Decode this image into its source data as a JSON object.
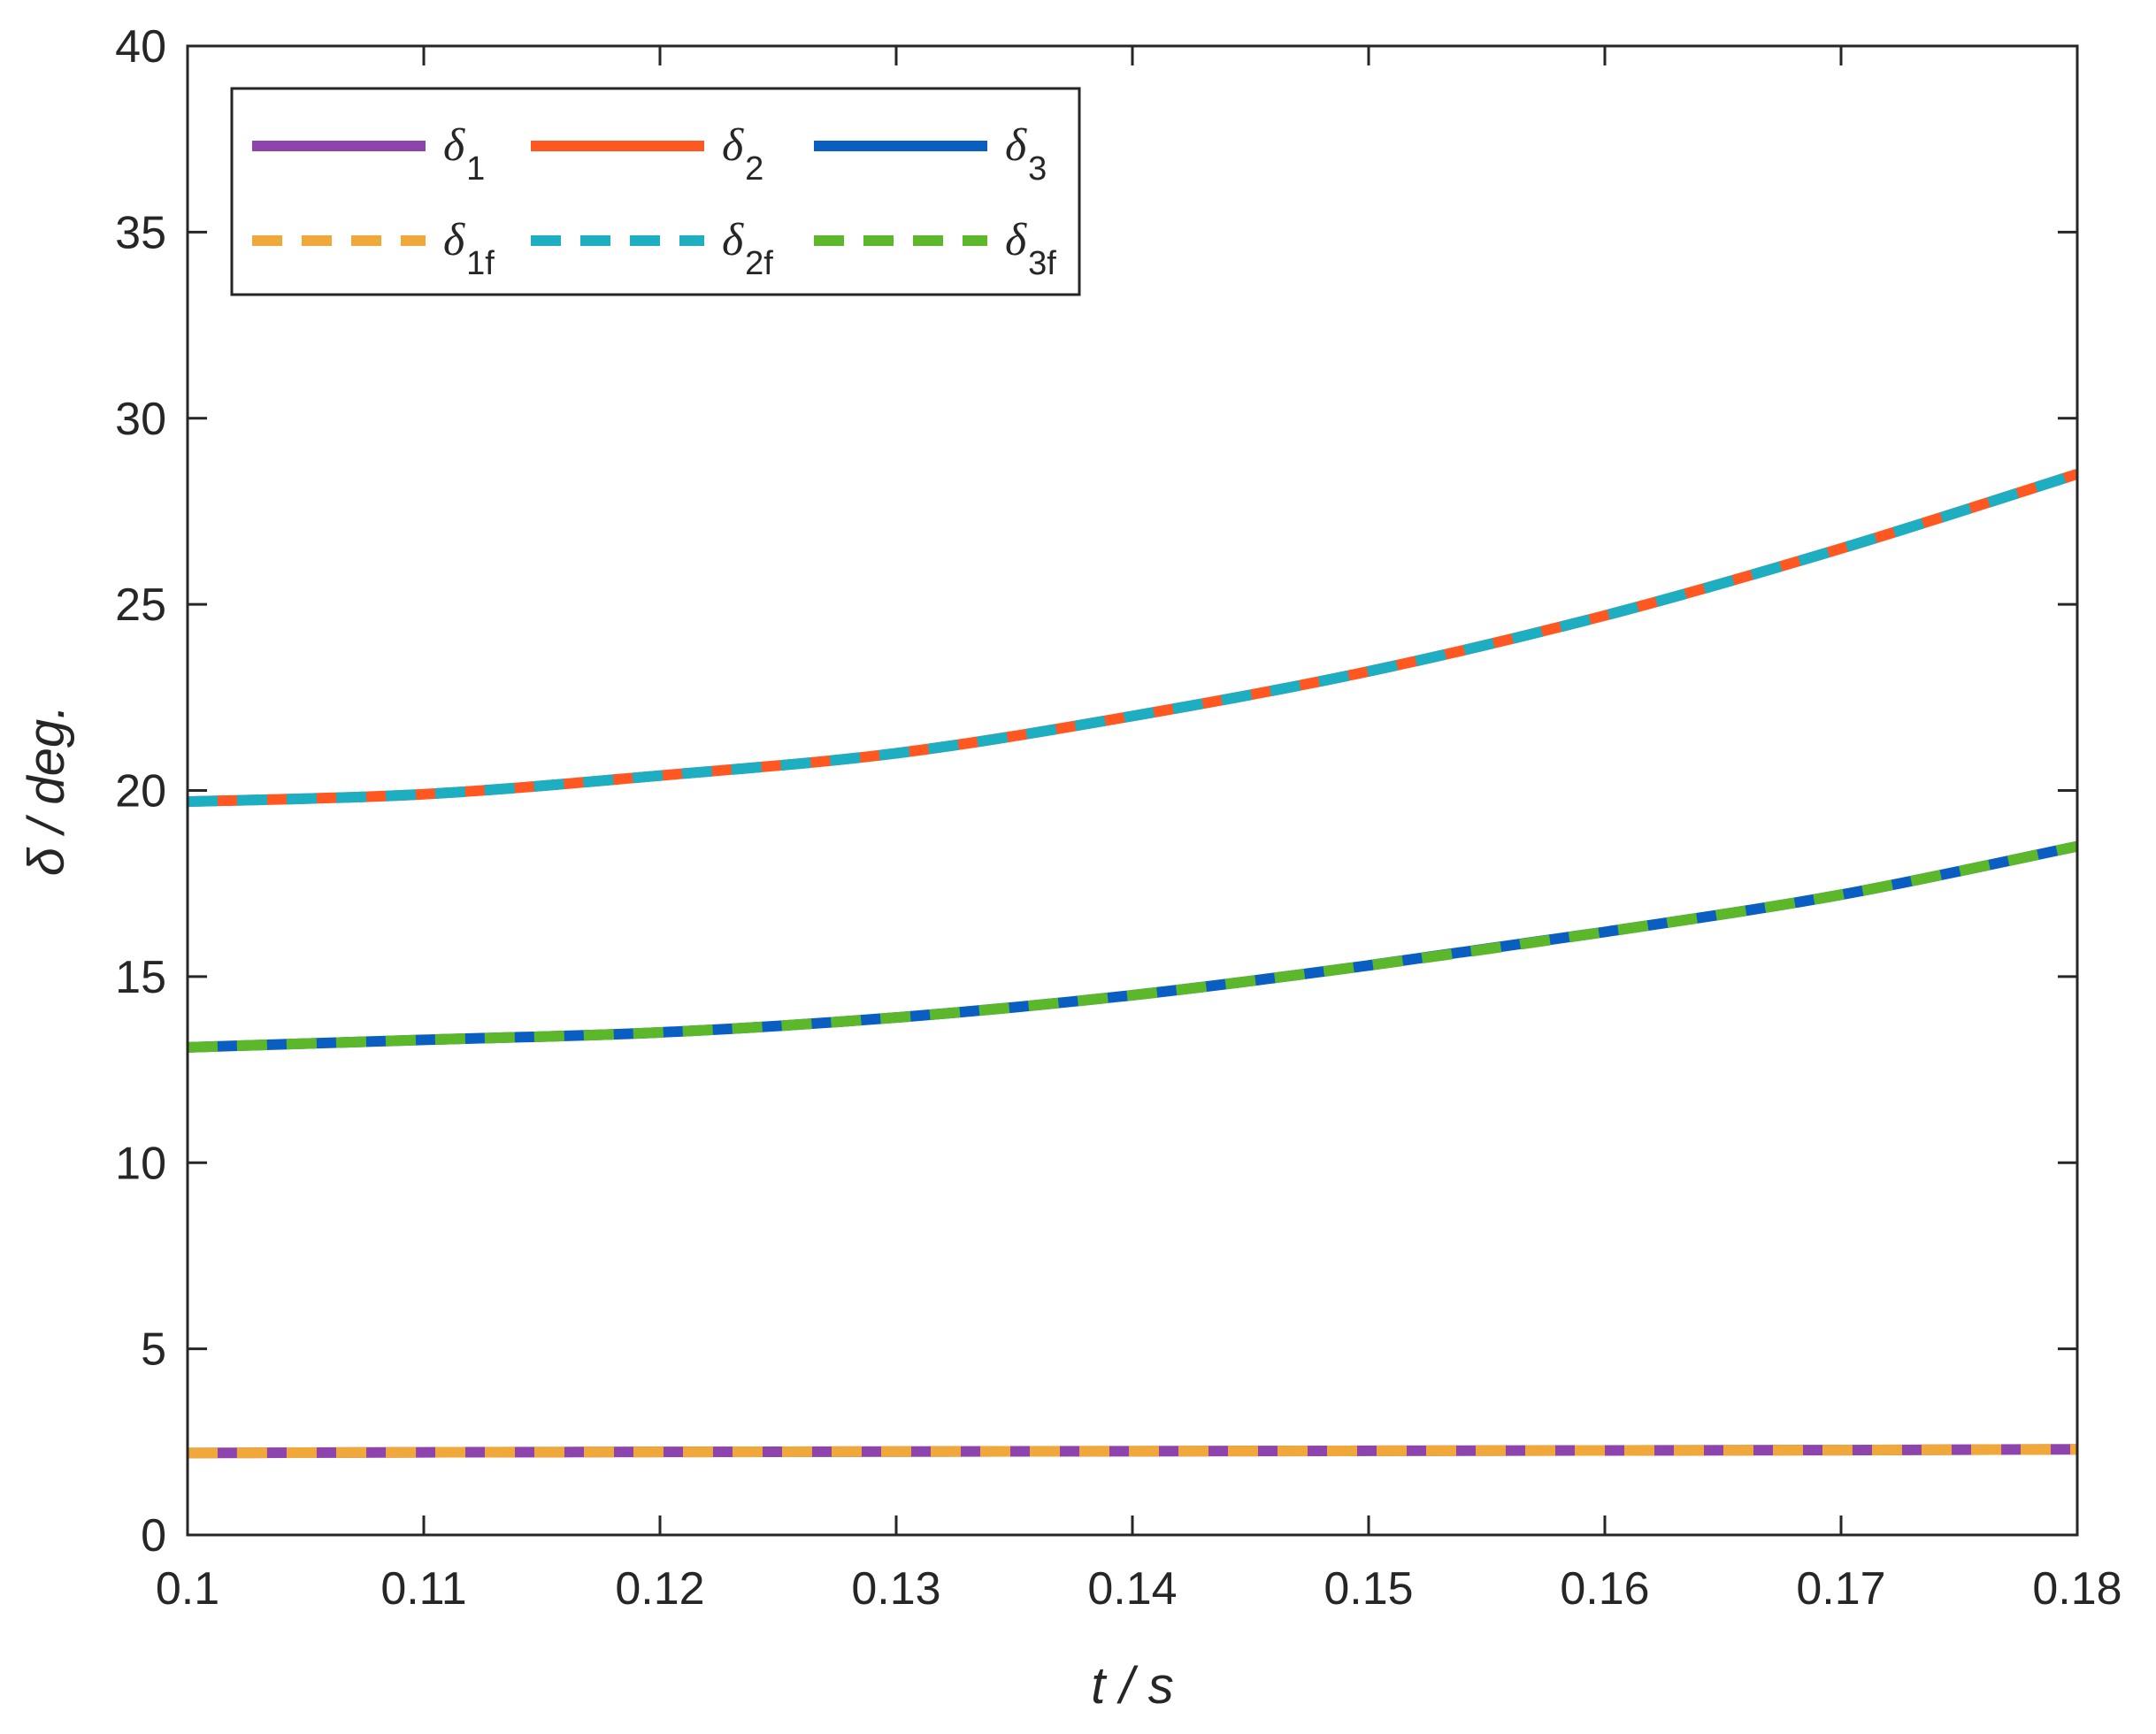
{
  "chart_data": {
    "type": "line",
    "title": "",
    "xlabel": "t / s",
    "ylabel": "δ / deg.",
    "xlim": [
      0.1,
      0.18
    ],
    "ylim": [
      0,
      40
    ],
    "x_ticks": [
      0.1,
      0.11,
      0.12,
      0.13,
      0.14,
      0.15,
      0.16,
      0.17,
      0.18
    ],
    "x_tick_labels": [
      "0.1",
      "0.11",
      "0.12",
      "0.13",
      "0.14",
      "0.15",
      "0.16",
      "0.17",
      "0.18"
    ],
    "y_ticks": [
      0,
      5,
      10,
      15,
      20,
      25,
      30,
      35,
      40
    ],
    "y_tick_labels": [
      "0",
      "5",
      "10",
      "15",
      "20",
      "25",
      "30",
      "35",
      "40"
    ],
    "grid": false,
    "legend_placement": "top-left",
    "legend_columns": 3,
    "x": [
      0.1,
      0.11,
      0.12,
      0.13,
      0.14,
      0.15,
      0.16,
      0.17,
      0.18
    ],
    "series": [
      {
        "name": "δ",
        "subscript": "1",
        "style": "solid",
        "color": "#8e44ad",
        "values": [
          2.2,
          2.22,
          2.23,
          2.24,
          2.25,
          2.26,
          2.27,
          2.28,
          2.3
        ]
      },
      {
        "name": "δ",
        "subscript": "2",
        "style": "solid",
        "color": "#ff5722",
        "values": [
          19.7,
          19.9,
          20.4,
          21.0,
          22.0,
          23.2,
          24.7,
          26.5,
          28.5
        ]
      },
      {
        "name": "δ",
        "subscript": "3",
        "style": "solid",
        "color": "#0b5ec1",
        "values": [
          13.1,
          13.3,
          13.5,
          13.9,
          14.5,
          15.3,
          16.2,
          17.2,
          18.5
        ]
      },
      {
        "name": "δ",
        "subscript": "1f",
        "style": "dashed",
        "color": "#f0a83a",
        "values": [
          2.2,
          2.22,
          2.23,
          2.24,
          2.25,
          2.26,
          2.27,
          2.28,
          2.3
        ]
      },
      {
        "name": "δ",
        "subscript": "2f",
        "style": "dashed",
        "color": "#1eaec2",
        "values": [
          19.7,
          19.9,
          20.4,
          21.0,
          22.0,
          23.2,
          24.7,
          26.5,
          28.5
        ]
      },
      {
        "name": "δ",
        "subscript": "3f",
        "style": "dashed",
        "color": "#5cb82a",
        "values": [
          13.1,
          13.3,
          13.5,
          13.9,
          14.5,
          15.3,
          16.2,
          17.2,
          18.5
        ]
      }
    ]
  }
}
